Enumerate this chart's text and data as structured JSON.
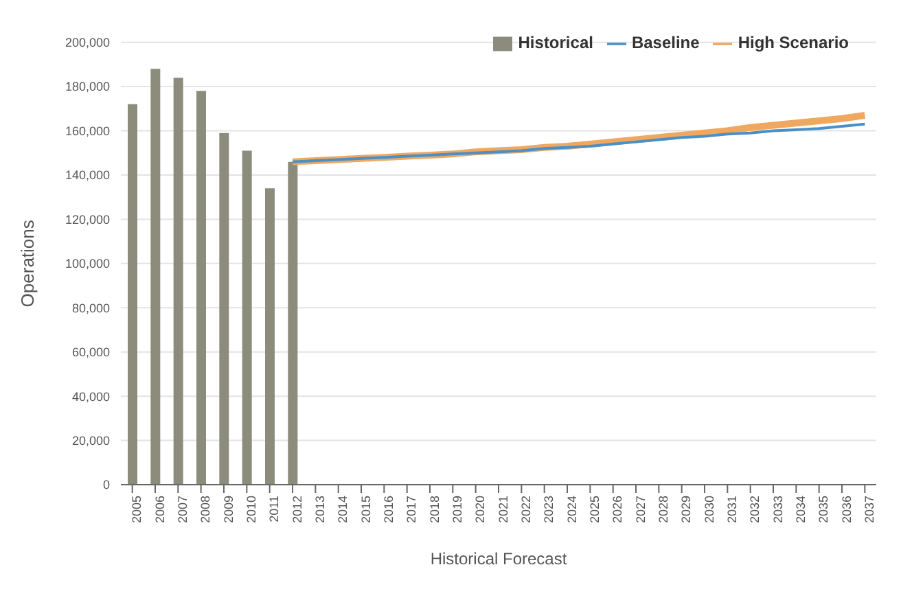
{
  "chart_data": {
    "type": "bar",
    "xlabel": "Historical Forecast",
    "ylabel": "Operations",
    "categories": [
      "2005",
      "2006",
      "2007",
      "2008",
      "2009",
      "2010",
      "2011",
      "2012",
      "2013",
      "2014",
      "2015",
      "2016",
      "2017",
      "2018",
      "2019",
      "2020",
      "2021",
      "2022",
      "2023",
      "2024",
      "2025",
      "2026",
      "2027",
      "2028",
      "2029",
      "2030",
      "2031",
      "2032",
      "2033",
      "2034",
      "2035",
      "2036",
      "2037"
    ],
    "series": [
      {
        "name": "Historical",
        "color": "#8b8c7c",
        "values": [
          172000,
          188000,
          184000,
          178000,
          159000,
          151000,
          134000,
          146000,
          null,
          null,
          null,
          null,
          null,
          null,
          null,
          null,
          null,
          null,
          null,
          null,
          null,
          null,
          null,
          null,
          null,
          null,
          null,
          null,
          null,
          null,
          null,
          null,
          null
        ]
      },
      {
        "name": "Baseline",
        "type": "line",
        "color": "#4a90c8",
        "values": [
          null,
          null,
          null,
          null,
          null,
          null,
          null,
          146000,
          146500,
          147000,
          147500,
          148000,
          148500,
          149000,
          149500,
          150000,
          150500,
          151000,
          152000,
          152500,
          153000,
          154000,
          155000,
          156000,
          157000,
          157500,
          158500,
          159000,
          160000,
          160500,
          161000,
          162000,
          163000
        ]
      },
      {
        "name": "High Scenario",
        "type": "line",
        "color": "#f0a860",
        "values": [
          null,
          null,
          null,
          null,
          null,
          null,
          null,
          146000,
          146500,
          147000,
          147500,
          148000,
          148500,
          149000,
          149500,
          150500,
          151000,
          151500,
          152500,
          153000,
          154000,
          155000,
          156000,
          157000,
          158000,
          159000,
          160000,
          161500,
          162500,
          163500,
          164500,
          165500,
          167000
        ]
      }
    ],
    "ylim": [
      0,
      200000
    ],
    "yticks": [
      {
        "value": 0,
        "label": "0"
      },
      {
        "value": 20000,
        "label": "20,000"
      },
      {
        "value": 40000,
        "label": "40,000"
      },
      {
        "value": 60000,
        "label": "60,000"
      },
      {
        "value": 80000,
        "label": "80,000"
      },
      {
        "value": 100000,
        "label": "100,000"
      },
      {
        "value": 120000,
        "label": "120,000"
      },
      {
        "value": 140000,
        "label": "140,000"
      },
      {
        "value": 160000,
        "label": "160,000"
      },
      {
        "value": 180000,
        "label": "180,000"
      },
      {
        "value": 200000,
        "label": "200,000"
      }
    ],
    "grid": "y",
    "legend": "top right",
    "marker": "none",
    "line_style": "solid"
  }
}
